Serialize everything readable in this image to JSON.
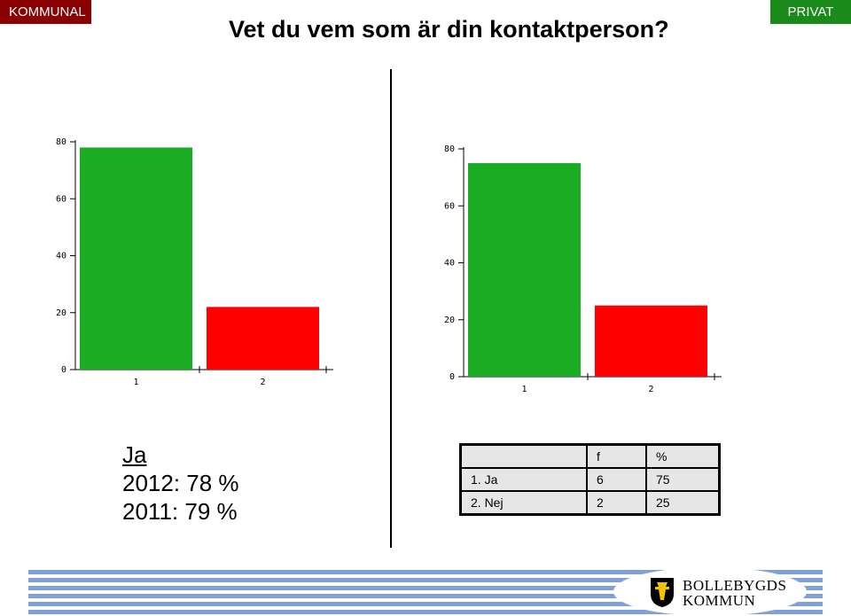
{
  "header": {
    "left_tag": "KOMMUNAL",
    "right_tag": "PRIVAT",
    "title": "Vet du vem som är din kontaktperson?"
  },
  "colors": {
    "green": "#1aad24",
    "red": "#ff0000",
    "kommunal": "#8b0000",
    "privat": "#1a8a1a"
  },
  "chart_data": [
    {
      "type": "bar",
      "categories": [
        "1",
        "2"
      ],
      "values": [
        78,
        22
      ],
      "ylim": [
        0,
        80
      ],
      "yticks": [
        0,
        20,
        40,
        60,
        80
      ],
      "colors": [
        "#1aad24",
        "#ff0000"
      ]
    },
    {
      "type": "bar",
      "categories": [
        "1",
        "2"
      ],
      "values": [
        75,
        25
      ],
      "ylim": [
        0,
        80
      ],
      "yticks": [
        0,
        20,
        40,
        60,
        80
      ],
      "colors": [
        "#1aad24",
        "#ff0000"
      ]
    }
  ],
  "summary": {
    "heading": "Ja",
    "line1": "2012: 78 %",
    "line2": "2011: 79 %"
  },
  "table": {
    "headers": [
      "",
      "f",
      "%"
    ],
    "rows": [
      [
        "1. Ja",
        "6",
        "75"
      ],
      [
        "2. Nej",
        "2",
        "25"
      ]
    ]
  },
  "logo": {
    "line1": "BOLLEBYGDS",
    "line2": "KOMMUN"
  }
}
